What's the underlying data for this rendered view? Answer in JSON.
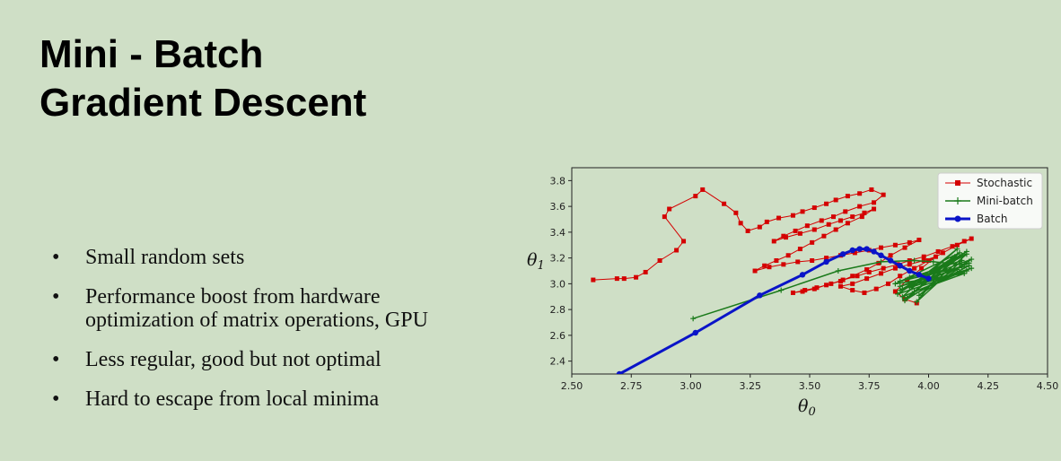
{
  "slide": {
    "title_lines": [
      "Mini - Batch",
      "Gradient Descent"
    ],
    "bullets": [
      "Small random sets",
      "Performance boost from hardware optimization of matrix operations, GPU",
      "Less regular, good but not optimal",
      "Hard to escape from local minima"
    ]
  },
  "chart_data": {
    "type": "line",
    "xlabel_base": "θ",
    "xlabel_sub": "0",
    "ylabel_base": "θ",
    "ylabel_sub": "1",
    "xlim": [
      2.5,
      4.5
    ],
    "ylim": [
      2.3,
      3.9
    ],
    "xticks": [
      "2.50",
      "2.75",
      "3.00",
      "3.25",
      "3.50",
      "3.75",
      "4.00",
      "4.25",
      "4.50"
    ],
    "yticks": [
      "2.4",
      "2.6",
      "2.8",
      "3.0",
      "3.2",
      "3.4",
      "3.6",
      "3.8"
    ],
    "legend_position": "top-right",
    "grid": false,
    "series": [
      {
        "name": "Stochastic",
        "color": "#d40000",
        "marker": "square",
        "x": [
          2.59,
          2.69,
          2.72,
          2.77,
          2.81,
          2.87,
          2.94,
          2.97,
          2.89,
          2.91,
          3.02,
          3.05,
          3.14,
          3.19,
          3.21,
          3.24,
          3.29,
          3.32,
          3.37,
          3.43,
          3.47,
          3.52,
          3.57,
          3.61,
          3.66,
          3.71,
          3.76,
          3.81,
          3.77,
          3.71,
          3.65,
          3.6,
          3.55,
          3.49,
          3.44,
          3.39,
          3.35,
          3.4,
          3.46,
          3.52,
          3.58,
          3.63,
          3.68,
          3.73,
          3.77,
          3.72,
          3.66,
          3.61,
          3.56,
          3.51,
          3.46,
          3.41,
          3.36,
          3.31,
          3.27,
          3.33,
          3.39,
          3.45,
          3.51,
          3.57,
          3.63,
          3.69,
          3.75,
          3.8,
          3.86,
          3.92,
          3.96,
          3.9,
          3.84,
          3.79,
          3.74,
          3.68,
          3.63,
          3.57,
          3.52,
          3.47,
          3.43,
          3.48,
          3.53,
          3.59,
          3.64,
          3.7,
          3.75,
          3.81,
          3.87,
          3.92,
          3.98,
          4.04,
          4.1,
          4.15,
          4.18,
          4.12,
          4.06,
          4.0,
          3.94,
          3.88,
          3.83,
          3.78,
          3.73,
          3.68,
          3.63,
          3.68,
          3.74,
          3.8,
          3.86,
          3.92,
          3.98,
          4.03,
          3.97,
          3.91,
          3.86,
          3.9,
          3.95
        ],
        "y": [
          3.03,
          3.04,
          3.04,
          3.05,
          3.09,
          3.18,
          3.26,
          3.33,
          3.52,
          3.58,
          3.68,
          3.73,
          3.62,
          3.55,
          3.47,
          3.41,
          3.44,
          3.48,
          3.51,
          3.53,
          3.56,
          3.59,
          3.62,
          3.65,
          3.68,
          3.7,
          3.73,
          3.69,
          3.63,
          3.6,
          3.56,
          3.52,
          3.49,
          3.45,
          3.41,
          3.37,
          3.33,
          3.36,
          3.39,
          3.42,
          3.46,
          3.49,
          3.52,
          3.55,
          3.58,
          3.52,
          3.47,
          3.42,
          3.37,
          3.32,
          3.27,
          3.22,
          3.18,
          3.14,
          3.1,
          3.13,
          3.15,
          3.17,
          3.18,
          3.2,
          3.22,
          3.24,
          3.26,
          3.28,
          3.3,
          3.32,
          3.34,
          3.28,
          3.22,
          3.16,
          3.11,
          3.06,
          3.02,
          2.99,
          2.96,
          2.94,
          2.93,
          2.95,
          2.97,
          3.0,
          3.03,
          3.06,
          3.09,
          3.12,
          3.15,
          3.18,
          3.21,
          3.25,
          3.29,
          3.33,
          3.35,
          3.3,
          3.24,
          3.18,
          3.12,
          3.06,
          3.0,
          2.96,
          2.93,
          2.95,
          2.98,
          3.0,
          3.04,
          3.08,
          3.12,
          3.15,
          3.18,
          3.21,
          3.12,
          3.03,
          2.94,
          2.88,
          2.85
        ]
      },
      {
        "name": "Mini-batch",
        "color": "#1a7a1a",
        "marker": "plus",
        "x": [
          3.01,
          3.38,
          3.62,
          3.8,
          3.94,
          4.02,
          4.08,
          4.13,
          4.15,
          4.17,
          3.88,
          4.16,
          3.9,
          4.14,
          3.92,
          4.18,
          3.89,
          4.12,
          3.93,
          4.16,
          3.87,
          4.1,
          3.95,
          4.14,
          3.88,
          4.17,
          3.91,
          4.13,
          3.86,
          4.15,
          3.94,
          4.11,
          3.9,
          4.18,
          3.88,
          4.12,
          3.96,
          4.16,
          3.89,
          4.14,
          3.92
        ],
        "y": [
          2.73,
          2.95,
          3.1,
          3.17,
          3.18,
          3.17,
          3.16,
          3.15,
          3.15,
          3.16,
          2.95,
          3.25,
          2.88,
          3.22,
          2.97,
          3.12,
          2.9,
          3.27,
          2.99,
          3.1,
          2.92,
          3.2,
          2.86,
          3.18,
          3.02,
          3.14,
          2.89,
          3.24,
          3.0,
          3.08,
          2.94,
          3.21,
          2.87,
          3.19,
          2.98,
          3.11,
          2.91,
          3.23,
          2.96,
          3.13,
          3.05
        ]
      },
      {
        "name": "Batch",
        "color": "#0a14c8",
        "marker": "circle",
        "x": [
          2.7,
          3.02,
          3.29,
          3.47,
          3.57,
          3.64,
          3.68,
          3.71,
          3.74,
          3.77,
          3.8,
          3.84,
          3.88,
          3.92,
          3.96,
          4.0
        ],
        "y": [
          2.3,
          2.62,
          2.91,
          3.07,
          3.17,
          3.23,
          3.26,
          3.27,
          3.27,
          3.25,
          3.22,
          3.18,
          3.14,
          3.1,
          3.07,
          3.04
        ]
      }
    ]
  }
}
